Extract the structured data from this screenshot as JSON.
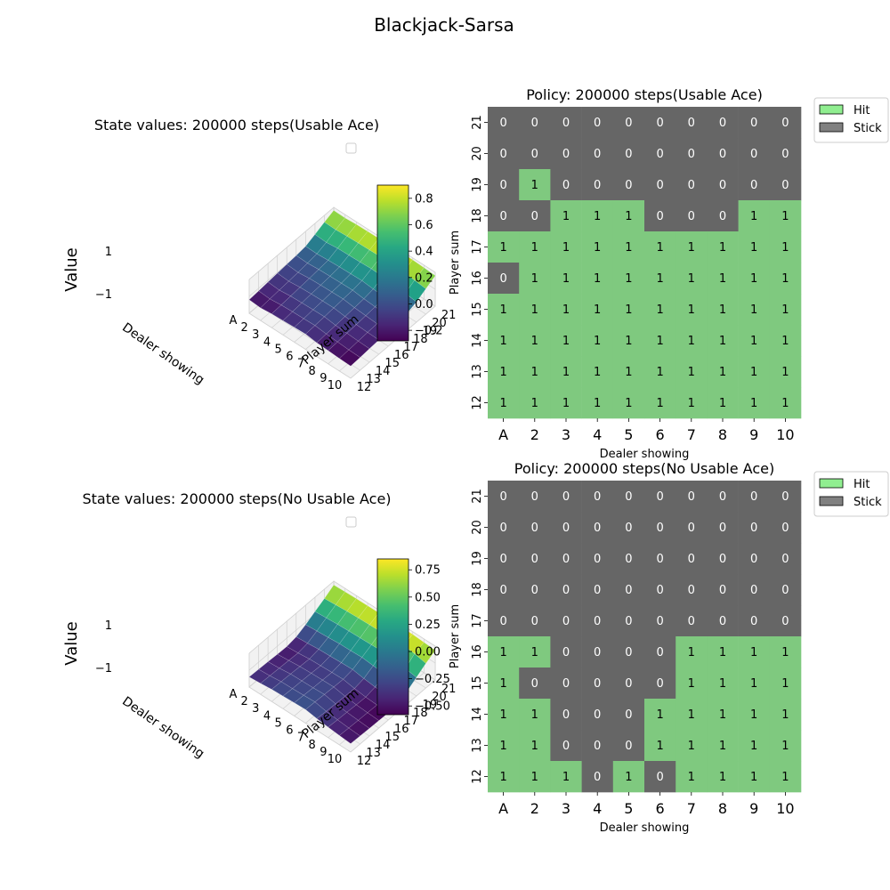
{
  "figure": {
    "title": "Blackjack-Sarsa"
  },
  "colors": {
    "hit": "#7fc97f",
    "stick": "#666666",
    "legend_hit": "#90ee90",
    "legend_stick": "#808080"
  },
  "chart_data": [
    {
      "type": "surface",
      "title": "State values: 200000 steps(Usable Ace)",
      "xlabel": "Dealer showing",
      "ylabel": "Player sum",
      "zlabel": "Value",
      "x_ticks": [
        "A",
        "2",
        "3",
        "4",
        "5",
        "6",
        "7",
        "8",
        "9",
        "10"
      ],
      "y_ticks": [
        "12",
        "13",
        "14",
        "15",
        "16",
        "17",
        "18",
        "19",
        "20",
        "21"
      ],
      "z_ticks": [
        "−1",
        "1"
      ],
      "colormap": "viridis",
      "colorbar": {
        "min": -0.28,
        "max": 0.9,
        "ticks": [
          "0.8",
          "0.6",
          "0.4",
          "0.2",
          "0.0",
          "−0.2"
        ],
        "tick_values": [
          0.8,
          0.6,
          0.4,
          0.2,
          0.0,
          -0.2
        ]
      },
      "values": [
        [
          -0.2,
          -0.25,
          -0.18,
          -0.15,
          -0.12,
          -0.1,
          -0.18,
          -0.22,
          -0.26,
          -0.28
        ],
        [
          -0.15,
          -0.2,
          -0.13,
          -0.1,
          -0.08,
          -0.06,
          -0.14,
          -0.18,
          -0.22,
          -0.24
        ],
        [
          -0.1,
          -0.15,
          -0.08,
          -0.05,
          -0.03,
          -0.02,
          -0.1,
          -0.14,
          -0.18,
          -0.2
        ],
        [
          -0.05,
          -0.1,
          -0.03,
          0.0,
          0.02,
          0.03,
          -0.05,
          -0.1,
          -0.14,
          -0.16
        ],
        [
          0.0,
          -0.05,
          0.02,
          0.05,
          0.07,
          0.08,
          0.0,
          -0.05,
          -0.1,
          -0.12
        ],
        [
          0.05,
          0.02,
          0.08,
          0.1,
          0.12,
          0.13,
          0.05,
          0.0,
          -0.05,
          -0.08
        ],
        [
          0.12,
          0.1,
          0.15,
          0.18,
          0.2,
          0.22,
          0.15,
          0.1,
          0.05,
          0.0
        ],
        [
          0.35,
          0.3,
          0.38,
          0.4,
          0.42,
          0.45,
          0.42,
          0.35,
          0.28,
          0.2
        ],
        [
          0.6,
          0.58,
          0.62,
          0.65,
          0.66,
          0.68,
          0.7,
          0.65,
          0.58,
          0.5
        ],
        [
          0.82,
          0.8,
          0.85,
          0.86,
          0.87,
          0.88,
          0.9,
          0.88,
          0.85,
          0.8
        ]
      ]
    },
    {
      "type": "heatmap",
      "title": "Policy: 200000 steps(Usable Ace)",
      "xlabel": "Dealer showing",
      "ylabel": "Player sum",
      "x": [
        "A",
        "2",
        "3",
        "4",
        "5",
        "6",
        "7",
        "8",
        "9",
        "10"
      ],
      "y": [
        "21",
        "20",
        "19",
        "18",
        "17",
        "16",
        "15",
        "14",
        "13",
        "12"
      ],
      "legend": [
        "Hit",
        "Stick"
      ],
      "values": [
        [
          0,
          0,
          0,
          0,
          0,
          0,
          0,
          0,
          0,
          0
        ],
        [
          0,
          0,
          0,
          0,
          0,
          0,
          0,
          0,
          0,
          0
        ],
        [
          0,
          1,
          0,
          0,
          0,
          0,
          0,
          0,
          0,
          0
        ],
        [
          0,
          0,
          1,
          1,
          1,
          0,
          0,
          0,
          1,
          1
        ],
        [
          1,
          1,
          1,
          1,
          1,
          1,
          1,
          1,
          1,
          1
        ],
        [
          0,
          1,
          1,
          1,
          1,
          1,
          1,
          1,
          1,
          1
        ],
        [
          1,
          1,
          1,
          1,
          1,
          1,
          1,
          1,
          1,
          1
        ],
        [
          1,
          1,
          1,
          1,
          1,
          1,
          1,
          1,
          1,
          1
        ],
        [
          1,
          1,
          1,
          1,
          1,
          1,
          1,
          1,
          1,
          1
        ],
        [
          1,
          1,
          1,
          1,
          1,
          1,
          1,
          1,
          1,
          1
        ]
      ]
    },
    {
      "type": "surface",
      "title": "State values: 200000 steps(No Usable Ace)",
      "xlabel": "Dealer showing",
      "ylabel": "Player sum",
      "zlabel": "Value",
      "x_ticks": [
        "A",
        "2",
        "3",
        "4",
        "5",
        "6",
        "7",
        "8",
        "9",
        "10"
      ],
      "y_ticks": [
        "12",
        "13",
        "14",
        "15",
        "16",
        "17",
        "18",
        "19",
        "20",
        "21"
      ],
      "z_ticks": [
        "−1",
        "1"
      ],
      "colormap": "viridis",
      "colorbar": {
        "min": -0.58,
        "max": 0.85,
        "ticks": [
          "0.75",
          "0.50",
          "0.25",
          "0.00",
          "−0.25",
          "−0.50"
        ],
        "tick_values": [
          0.75,
          0.5,
          0.25,
          0.0,
          -0.25,
          -0.5
        ]
      },
      "values": [
        [
          -0.4,
          -0.35,
          -0.28,
          -0.25,
          -0.22,
          -0.2,
          -0.3,
          -0.38,
          -0.45,
          -0.5
        ],
        [
          -0.42,
          -0.38,
          -0.3,
          -0.28,
          -0.25,
          -0.22,
          -0.35,
          -0.42,
          -0.48,
          -0.52
        ],
        [
          -0.45,
          -0.4,
          -0.32,
          -0.3,
          -0.28,
          -0.25,
          -0.38,
          -0.45,
          -0.5,
          -0.55
        ],
        [
          -0.48,
          -0.42,
          -0.35,
          -0.32,
          -0.3,
          -0.28,
          -0.4,
          -0.48,
          -0.52,
          -0.56
        ],
        [
          -0.5,
          -0.45,
          -0.38,
          -0.35,
          -0.32,
          -0.3,
          -0.42,
          -0.5,
          -0.54,
          -0.58
        ],
        [
          -0.4,
          -0.35,
          -0.28,
          -0.25,
          -0.22,
          -0.2,
          -0.3,
          -0.38,
          -0.45,
          -0.5
        ],
        [
          -0.15,
          -0.1,
          -0.05,
          0.0,
          0.02,
          0.05,
          -0.02,
          -0.1,
          -0.18,
          -0.25
        ],
        [
          0.15,
          0.2,
          0.25,
          0.28,
          0.3,
          0.32,
          0.35,
          0.28,
          0.2,
          0.1
        ],
        [
          0.45,
          0.5,
          0.55,
          0.58,
          0.6,
          0.62,
          0.7,
          0.68,
          0.6,
          0.45
        ],
        [
          0.78,
          0.8,
          0.82,
          0.83,
          0.84,
          0.85,
          0.85,
          0.84,
          0.8,
          0.75
        ]
      ]
    },
    {
      "type": "heatmap",
      "title": "Policy: 200000 steps(No Usable Ace)",
      "xlabel": "Dealer showing",
      "ylabel": "Player sum",
      "x": [
        "A",
        "2",
        "3",
        "4",
        "5",
        "6",
        "7",
        "8",
        "9",
        "10"
      ],
      "y": [
        "21",
        "20",
        "19",
        "18",
        "17",
        "16",
        "15",
        "14",
        "13",
        "12"
      ],
      "legend": [
        "Hit",
        "Stick"
      ],
      "values": [
        [
          0,
          0,
          0,
          0,
          0,
          0,
          0,
          0,
          0,
          0
        ],
        [
          0,
          0,
          0,
          0,
          0,
          0,
          0,
          0,
          0,
          0
        ],
        [
          0,
          0,
          0,
          0,
          0,
          0,
          0,
          0,
          0,
          0
        ],
        [
          0,
          0,
          0,
          0,
          0,
          0,
          0,
          0,
          0,
          0
        ],
        [
          0,
          0,
          0,
          0,
          0,
          0,
          0,
          0,
          0,
          0
        ],
        [
          1,
          1,
          0,
          0,
          0,
          0,
          1,
          1,
          1,
          1
        ],
        [
          1,
          0,
          0,
          0,
          0,
          0,
          1,
          1,
          1,
          1
        ],
        [
          1,
          1,
          0,
          0,
          0,
          1,
          1,
          1,
          1,
          1
        ],
        [
          1,
          1,
          0,
          0,
          0,
          1,
          1,
          1,
          1,
          1
        ],
        [
          1,
          1,
          1,
          0,
          1,
          0,
          1,
          1,
          1,
          1
        ]
      ]
    }
  ]
}
